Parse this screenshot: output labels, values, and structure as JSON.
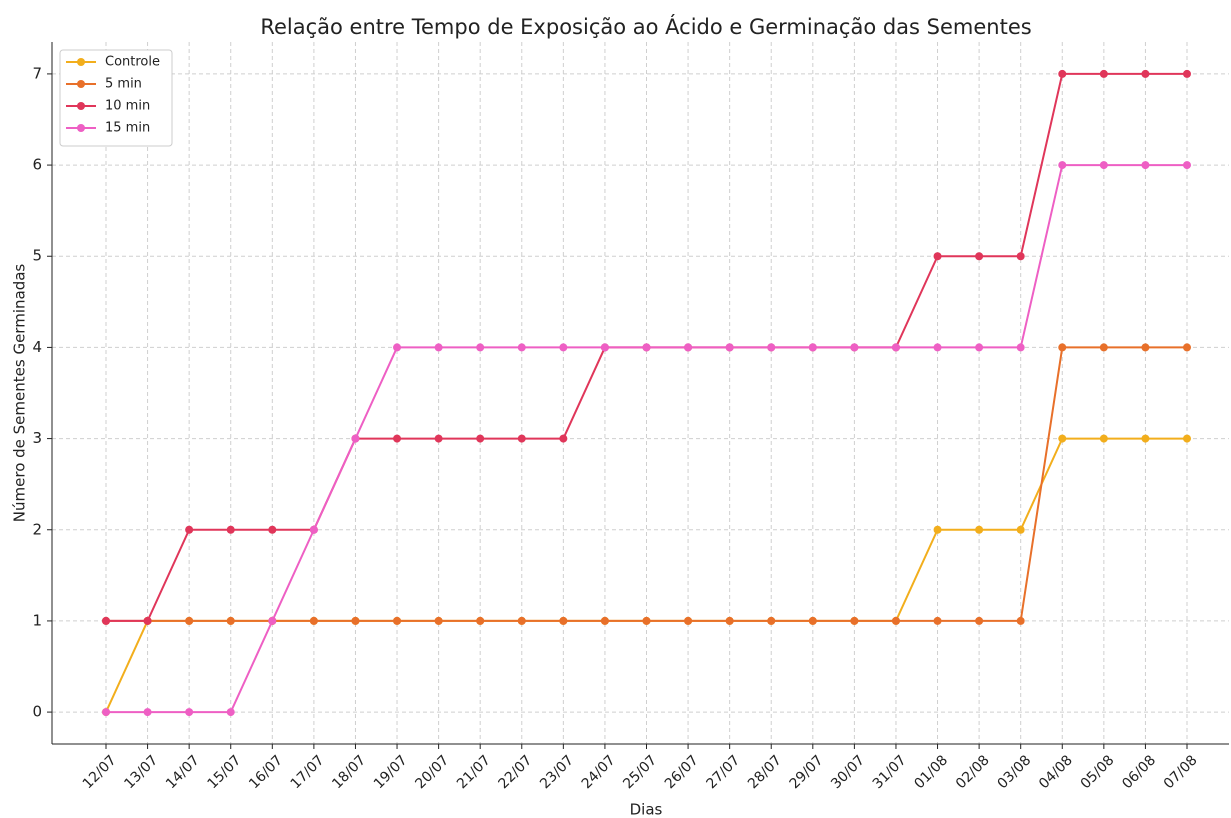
{
  "chart_data": {
    "type": "line",
    "title": "Relação entre Tempo de Exposição ao Ácido e Germinação das Sementes",
    "x_label": "Dias",
    "y_label": "Número de Sementes Germinadas",
    "categories": [
      "12/07",
      "13/07",
      "14/07",
      "15/07",
      "16/07",
      "17/07",
      "18/07",
      "19/07",
      "20/07",
      "21/07",
      "22/07",
      "23/07",
      "24/07",
      "25/07",
      "26/07",
      "27/07",
      "28/07",
      "29/07",
      "30/07",
      "31/07",
      "01/08",
      "02/08",
      "03/08",
      "04/08",
      "05/08",
      "06/08",
      "07/08"
    ],
    "series": [
      {
        "name": "Controle",
        "color": "#f2ae1c",
        "values": [
          0,
          1,
          1,
          1,
          1,
          1,
          1,
          1,
          1,
          1,
          1,
          1,
          1,
          1,
          1,
          1,
          1,
          1,
          1,
          1,
          2,
          2,
          2,
          3,
          3,
          3,
          3
        ]
      },
      {
        "name": "5 min",
        "color": "#e8702a",
        "values": [
          1,
          1,
          1,
          1,
          1,
          1,
          1,
          1,
          1,
          1,
          1,
          1,
          1,
          1,
          1,
          1,
          1,
          1,
          1,
          1,
          1,
          1,
          1,
          4,
          4,
          4,
          4
        ]
      },
      {
        "name": "10 min",
        "color": "#e0365a",
        "values": [
          1,
          1,
          2,
          2,
          2,
          2,
          3,
          3,
          3,
          3,
          3,
          3,
          4,
          4,
          4,
          4,
          4,
          4,
          4,
          4,
          5,
          5,
          5,
          7,
          7,
          7,
          7
        ]
      },
      {
        "name": "15 min",
        "color": "#ee5fc4",
        "values": [
          0,
          0,
          0,
          0,
          1,
          2,
          3,
          4,
          4,
          4,
          4,
          4,
          4,
          4,
          4,
          4,
          4,
          4,
          4,
          4,
          4,
          4,
          4,
          6,
          6,
          6,
          6
        ]
      }
    ],
    "ylim": [
      -0.35,
      7.35
    ],
    "yticks": [
      0,
      1,
      2,
      3,
      4,
      5,
      6,
      7
    ],
    "grid": true,
    "legend": "upper left"
  }
}
